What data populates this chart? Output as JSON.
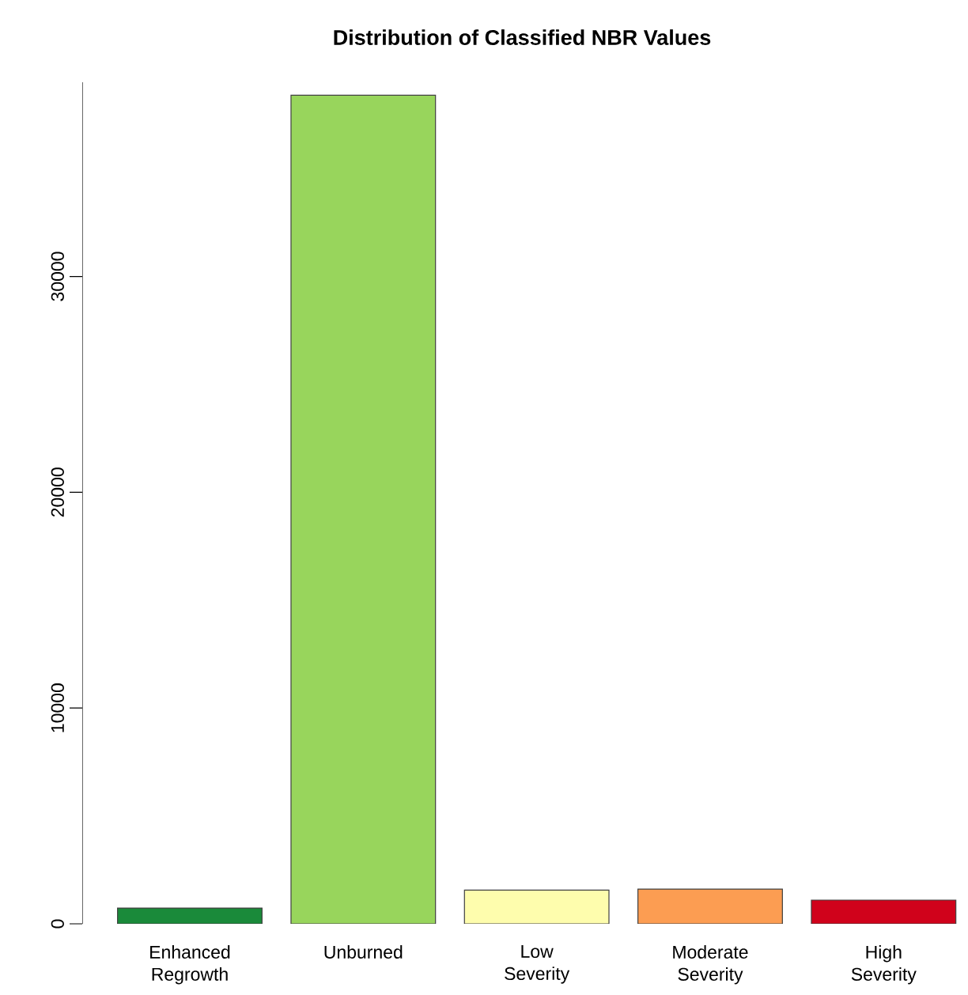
{
  "chart_data": {
    "type": "bar",
    "title": "Distribution of Classified NBR Values",
    "categories": [
      "Enhanced Regrowth",
      "Unburned",
      "Low Severity",
      "Moderate Severity",
      "High Severity"
    ],
    "values": [
      730,
      38400,
      1560,
      1610,
      1100
    ],
    "colors": [
      "#1a8a3a",
      "#98d55c",
      "#fefdad",
      "#fc9d52",
      "#d0021b"
    ],
    "ylim": [
      0,
      39000
    ],
    "yticks": [
      0,
      10000,
      20000,
      30000
    ],
    "grid": false
  }
}
